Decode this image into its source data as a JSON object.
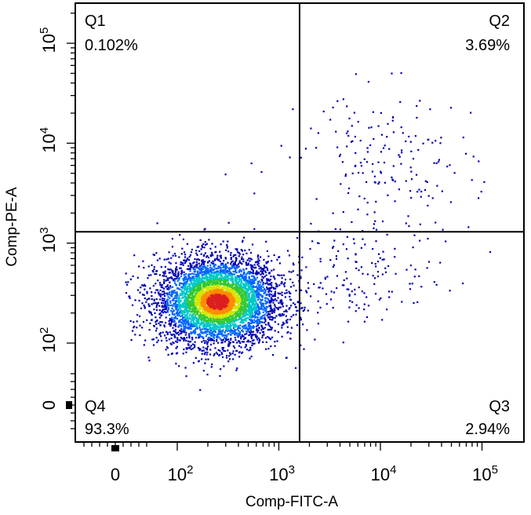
{
  "chart_data": {
    "type": "scatter",
    "subtype": "flow-cytometry-density-dot-plot",
    "xlabel": "Comp-FITC-A",
    "ylabel": "Comp-PE-A",
    "x_scale": "biexponential",
    "y_scale": "biexponential",
    "x_ticks": [
      {
        "value": 0,
        "base": "0",
        "exp": ""
      },
      {
        "value": 100,
        "base": "10",
        "exp": "2"
      },
      {
        "value": 1000,
        "base": "10",
        "exp": "3"
      },
      {
        "value": 10000,
        "base": "10",
        "exp": "4"
      },
      {
        "value": 100000,
        "base": "10",
        "exp": "5"
      }
    ],
    "y_ticks": [
      {
        "value": 0,
        "base": "0",
        "exp": ""
      },
      {
        "value": 100,
        "base": "10",
        "exp": "2"
      },
      {
        "value": 1000,
        "base": "10",
        "exp": "3"
      },
      {
        "value": 10000,
        "base": "10",
        "exp": "4"
      },
      {
        "value": 100000,
        "base": "10",
        "exp": "5"
      }
    ],
    "quadrant_gate": {
      "x": 1600,
      "y": 1300
    },
    "quadrants": [
      {
        "name": "Q1",
        "percent": "0.102%",
        "position": "top-left"
      },
      {
        "name": "Q2",
        "percent": "3.69%",
        "position": "top-right"
      },
      {
        "name": "Q3",
        "percent": "2.94%",
        "position": "bottom-right"
      },
      {
        "name": "Q4",
        "percent": "93.3%",
        "position": "bottom-left"
      }
    ],
    "populations": [
      {
        "quadrant": "Q4",
        "center_x": 250,
        "center_y": 260,
        "spread_log_x": 0.3,
        "spread_log_y": 0.22,
        "share": 0.933
      },
      {
        "quadrant": "Q2",
        "center_x": 12000,
        "center_y": 5500,
        "spread_log_x": 0.42,
        "spread_log_y": 0.4,
        "share": 0.0369
      },
      {
        "quadrant": "Q3",
        "center_x": 6000,
        "center_y": 450,
        "spread_log_x": 0.42,
        "spread_log_y": 0.22,
        "share": 0.0294
      },
      {
        "quadrant": "Q1",
        "center_x": 700,
        "center_y": 3000,
        "spread_log_x": 0.2,
        "spread_log_y": 0.2,
        "share": 0.00102
      }
    ],
    "density_colormap": [
      "#0000b4",
      "#0064ff",
      "#00c8c8",
      "#32c832",
      "#d2e600",
      "#ff8c00",
      "#dc1e1e"
    ],
    "grid": false,
    "legend": "none"
  }
}
